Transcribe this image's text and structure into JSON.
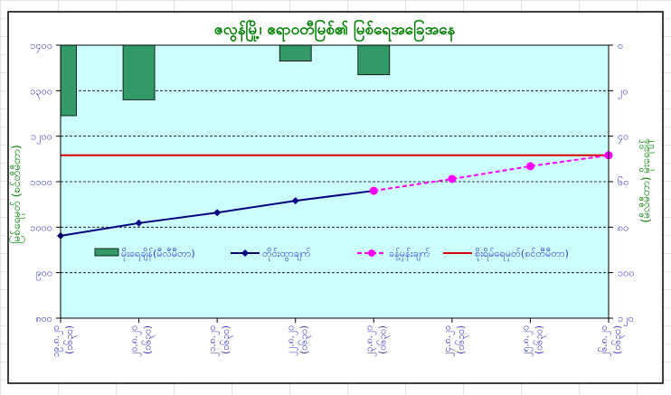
{
  "chart_data": {
    "type": "bar+line",
    "title": "ဇလွန်မြို့၊ ဧရာဝတီမြစ်၏ မြစ်ရေအခြေအနေ",
    "ylabel": "မြစ်ရေမှတ် (စင်တီမီတာ)",
    "y2label": "(မီလီမီတာ) မိုးရေချိန်",
    "categories": [
      [
        "၁၉.၈.၂၀",
        "(၀၆၃၀)"
      ],
      [
        "၂၀.၈.၂၀",
        "(၀၆၃၀)"
      ],
      [
        "၂၁.၈.၂၀",
        "(၀၆၃၀)"
      ],
      [
        "၂၂.၈.၂၀",
        "(၀၆၃၀)"
      ],
      [
        "၂၃.၈.၂၀",
        "(၀၆၃၀)"
      ],
      [
        "၂၄.၈.၂၀",
        "(၀၆၃၀)"
      ],
      [
        "၂၅.၈.၂၀",
        "(၀၆၃၀)"
      ],
      [
        "၂၆.၈.၂၀",
        "(၀၆၃၀)"
      ]
    ],
    "ylim": [
      800,
      1400
    ],
    "yticks": [
      800,
      900,
      1000,
      1100,
      1200,
      1300,
      1400
    ],
    "ytick_labels": [
      "၈၀၀",
      "၉၀၀",
      "၁၀၀၀",
      "၁၁၀၀",
      "၁၂၀၀",
      "၁၃၀၀",
      "၁၄၀၀"
    ],
    "y2lim": [
      0,
      120
    ],
    "y2_reversed": true,
    "y2ticks": [
      0,
      20,
      40,
      60,
      80,
      100,
      120
    ],
    "y2tick_labels": [
      "၀",
      "၂၀",
      "၄၀",
      "၆၀",
      "၈၀",
      "၁၀၀",
      "၁၂၀"
    ],
    "grid": "horizontal dashed",
    "legend_placement": "inside-bottom",
    "series": [
      {
        "name": "မိုးရေချိန်(မီလီမီတာ)",
        "type": "bar",
        "axis": "right",
        "color": "#339966",
        "values": [
          31,
          24,
          0,
          7,
          13,
          null,
          null,
          null
        ]
      },
      {
        "name": "တိုင်းထွာချက်",
        "type": "line",
        "axis": "left",
        "color": "#000080",
        "marker": "diamond",
        "values": [
          981,
          1009,
          1032,
          1058,
          1080,
          null,
          null,
          null
        ]
      },
      {
        "name": "ခန့်မှန်းချက်",
        "type": "line-dashed",
        "axis": "left",
        "color": "#ff00ff",
        "marker": "circle",
        "values": [
          null,
          null,
          null,
          null,
          1080,
          1106,
          1134,
          1158
        ]
      },
      {
        "name": "စိုးရိမ်ရေမှတ်(စင်တီမီတာ)",
        "type": "hline",
        "axis": "left",
        "color": "#dd0000",
        "value": 1158
      }
    ],
    "colors": {
      "plot_bg": "#ccffff",
      "title": "#008000",
      "axis_text": "#3333cc"
    }
  }
}
